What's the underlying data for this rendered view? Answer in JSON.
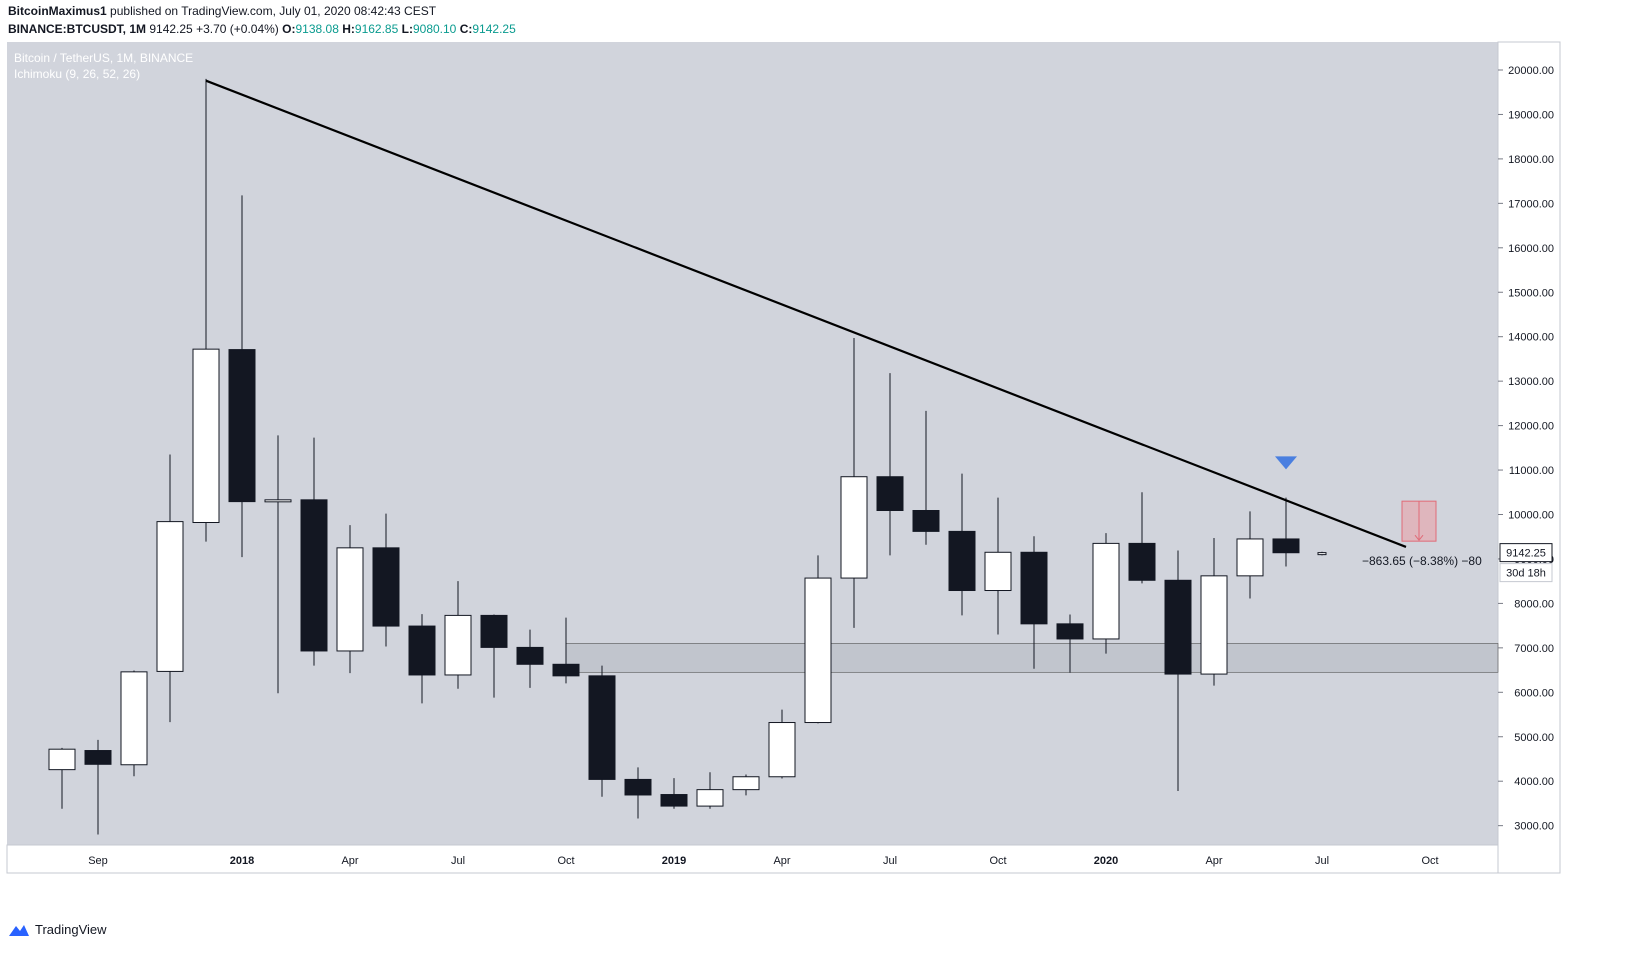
{
  "header": {
    "author": "BitcoinMaximus1",
    "published_text": "published on TradingView.com, July 01, 2020 08:42:43 CEST",
    "symbol": "BINANCE:BTCUSDT, 1M",
    "last": "9142.25",
    "change": "+3.70 (+0.04%)",
    "o_label": "O:",
    "o": "9138.08",
    "h_label": "H:",
    "h": "9162.85",
    "l_label": "L:",
    "l": "9080.10",
    "c_label": "C:",
    "c": "9142.25"
  },
  "legend": {
    "title": "Bitcoin / TetherUS, 1M, BINANCE",
    "indicator": "Ichimoku (9, 26, 52, 26)"
  },
  "price_badge": "9142.25",
  "countdown_badge": "30d 18h",
  "measure_label": "−863.65 (−8.38%) −80",
  "footer": {
    "brand": "TradingView"
  },
  "colors": {
    "background": "#d1d4dc",
    "bull_body": "#ffffff",
    "bear_body": "#131722",
    "trendline": "#000000",
    "support_zone": "#b2b5be",
    "marker": "#4a7fe0",
    "projection_box": "#e8a1a8"
  },
  "chart_data": {
    "type": "candlestick",
    "interval": "1M",
    "ylim": [
      2500,
      20500
    ],
    "y_ticks": [
      3000,
      4000,
      5000,
      6000,
      7000,
      8000,
      9000,
      10000,
      11000,
      12000,
      13000,
      14000,
      15000,
      16000,
      17000,
      18000,
      19000,
      20000
    ],
    "y_tick_labels": [
      "3000.00",
      "4000.00",
      "5000.00",
      "6000.00",
      "7000.00",
      "8000.00",
      "9000.00",
      "10000.00",
      "11000.00",
      "12000.00",
      "13000.00",
      "14000.00",
      "15000.00",
      "16000.00",
      "17000.00",
      "18000.00",
      "19000.00",
      "20000.00"
    ],
    "x_labels": [
      {
        "label": "Sep",
        "date": "2017-09"
      },
      {
        "label": "2018",
        "date": "2018-01"
      },
      {
        "label": "Apr",
        "date": "2018-04"
      },
      {
        "label": "Jul",
        "date": "2018-07"
      },
      {
        "label": "Oct",
        "date": "2018-10"
      },
      {
        "label": "2019",
        "date": "2019-01"
      },
      {
        "label": "Apr",
        "date": "2019-04"
      },
      {
        "label": "Jul",
        "date": "2019-07"
      },
      {
        "label": "Oct",
        "date": "2019-10"
      },
      {
        "label": "2020",
        "date": "2020-01"
      },
      {
        "label": "Apr",
        "date": "2020-04"
      },
      {
        "label": "Jul",
        "date": "2020-07"
      },
      {
        "label": "Oct",
        "date": "2020-10"
      }
    ],
    "candles": [
      {
        "date": "2017-08",
        "open": 4260,
        "high": 4750,
        "low": 3380,
        "close": 4720
      },
      {
        "date": "2017-09",
        "open": 4690,
        "high": 4930,
        "low": 2800,
        "close": 4380
      },
      {
        "date": "2017-10",
        "open": 4370,
        "high": 6490,
        "low": 4110,
        "close": 6460
      },
      {
        "date": "2017-11",
        "open": 6470,
        "high": 11350,
        "low": 5330,
        "close": 9840
      },
      {
        "date": "2017-12",
        "open": 9820,
        "high": 19800,
        "low": 9390,
        "close": 13720
      },
      {
        "date": "2018-01",
        "open": 13710,
        "high": 17180,
        "low": 9040,
        "close": 10290
      },
      {
        "date": "2018-02",
        "open": 10290,
        "high": 11780,
        "low": 5980,
        "close": 10330
      },
      {
        "date": "2018-03",
        "open": 10330,
        "high": 11730,
        "low": 6600,
        "close": 6930
      },
      {
        "date": "2018-04",
        "open": 6930,
        "high": 9760,
        "low": 6430,
        "close": 9250
      },
      {
        "date": "2018-05",
        "open": 9250,
        "high": 10020,
        "low": 7030,
        "close": 7490
      },
      {
        "date": "2018-06",
        "open": 7490,
        "high": 7760,
        "low": 5750,
        "close": 6390
      },
      {
        "date": "2018-07",
        "open": 6390,
        "high": 8500,
        "low": 6080,
        "close": 7730
      },
      {
        "date": "2018-08",
        "open": 7730,
        "high": 7750,
        "low": 5880,
        "close": 7010
      },
      {
        "date": "2018-09",
        "open": 7010,
        "high": 7410,
        "low": 6100,
        "close": 6630
      },
      {
        "date": "2018-10",
        "open": 6630,
        "high": 7680,
        "low": 6200,
        "close": 6370
      },
      {
        "date": "2018-11",
        "open": 6370,
        "high": 6600,
        "low": 3650,
        "close": 4040
      },
      {
        "date": "2018-12",
        "open": 4040,
        "high": 4310,
        "low": 3160,
        "close": 3690
      },
      {
        "date": "2019-01",
        "open": 3700,
        "high": 4070,
        "low": 3380,
        "close": 3440
      },
      {
        "date": "2019-02",
        "open": 3440,
        "high": 4200,
        "low": 3380,
        "close": 3810
      },
      {
        "date": "2019-03",
        "open": 3810,
        "high": 4150,
        "low": 3680,
        "close": 4100
      },
      {
        "date": "2019-04",
        "open": 4100,
        "high": 5610,
        "low": 4060,
        "close": 5320
      },
      {
        "date": "2019-05",
        "open": 5320,
        "high": 9080,
        "low": 5300,
        "close": 8570
      },
      {
        "date": "2019-06",
        "open": 8570,
        "high": 13970,
        "low": 7450,
        "close": 10850
      },
      {
        "date": "2019-07",
        "open": 10850,
        "high": 13180,
        "low": 9080,
        "close": 10090
      },
      {
        "date": "2019-08",
        "open": 10090,
        "high": 12330,
        "low": 9320,
        "close": 9620
      },
      {
        "date": "2019-09",
        "open": 9620,
        "high": 10920,
        "low": 7730,
        "close": 8290
      },
      {
        "date": "2019-10",
        "open": 8290,
        "high": 10380,
        "low": 7300,
        "close": 9150
      },
      {
        "date": "2019-11",
        "open": 9150,
        "high": 9510,
        "low": 6530,
        "close": 7540
      },
      {
        "date": "2019-12",
        "open": 7540,
        "high": 7750,
        "low": 6440,
        "close": 7200
      },
      {
        "date": "2020-01",
        "open": 7200,
        "high": 9580,
        "low": 6870,
        "close": 9350
      },
      {
        "date": "2020-02",
        "open": 9350,
        "high": 10500,
        "low": 8450,
        "close": 8520
      },
      {
        "date": "2020-03",
        "open": 8520,
        "high": 9190,
        "low": 3780,
        "close": 6410
      },
      {
        "date": "2020-04",
        "open": 6410,
        "high": 9470,
        "low": 6150,
        "close": 8620
      },
      {
        "date": "2020-05",
        "open": 8620,
        "high": 10070,
        "low": 8110,
        "close": 9450
      },
      {
        "date": "2020-06",
        "open": 9450,
        "high": 10380,
        "low": 8830,
        "close": 9140
      },
      {
        "date": "2020-07",
        "open": 9138.08,
        "high": 9162.85,
        "low": 9080.1,
        "close": 9142.25
      }
    ],
    "trendline": [
      {
        "date": "2017-12",
        "price": 19760
      },
      {
        "date": "2020-09",
        "price": 9270
      }
    ],
    "support_zone": {
      "from": "2018-10",
      "to": "2020-12",
      "low": 6450,
      "high": 7100
    },
    "marker": {
      "type": "arrow-down",
      "date": "2020-06",
      "price": 11150
    },
    "projection": {
      "date": "2020-09",
      "from_price": 10300,
      "to_price": 9400
    },
    "grid": false
  }
}
